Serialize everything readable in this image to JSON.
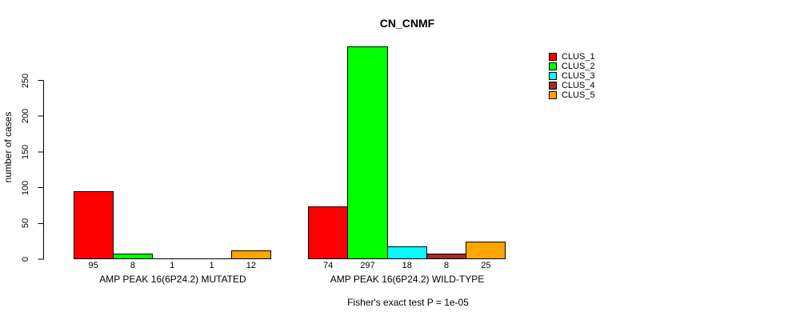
{
  "chart_data": {
    "type": "bar",
    "title": "CN_CNMF",
    "ylabel": "number of cases",
    "xlabel": "",
    "ylim": [
      0,
      250
    ],
    "yticks": [
      0,
      50,
      100,
      150,
      200,
      250
    ],
    "grid": false,
    "legend_position": "top-right",
    "series": [
      {
        "name": "CLUS_1",
        "color": "#FF0000"
      },
      {
        "name": "CLUS_2",
        "color": "#00FF00"
      },
      {
        "name": "CLUS_3",
        "color": "#00FFFF"
      },
      {
        "name": "CLUS_4",
        "color": "#A52A2A"
      },
      {
        "name": "CLUS_5",
        "color": "#FFA500"
      }
    ],
    "groups": [
      {
        "label": "AMP PEAK 16(6P24.2) MUTATED",
        "values": [
          95,
          8,
          1,
          1,
          12
        ]
      },
      {
        "label": "AMP PEAK 16(6P24.2) WILD-TYPE",
        "values": [
          74,
          297,
          18,
          8,
          25
        ]
      }
    ],
    "annotation": "Fisher's exact test P = 1e-05",
    "axis_color": "#000000",
    "background_color": "#FFFFFF"
  }
}
